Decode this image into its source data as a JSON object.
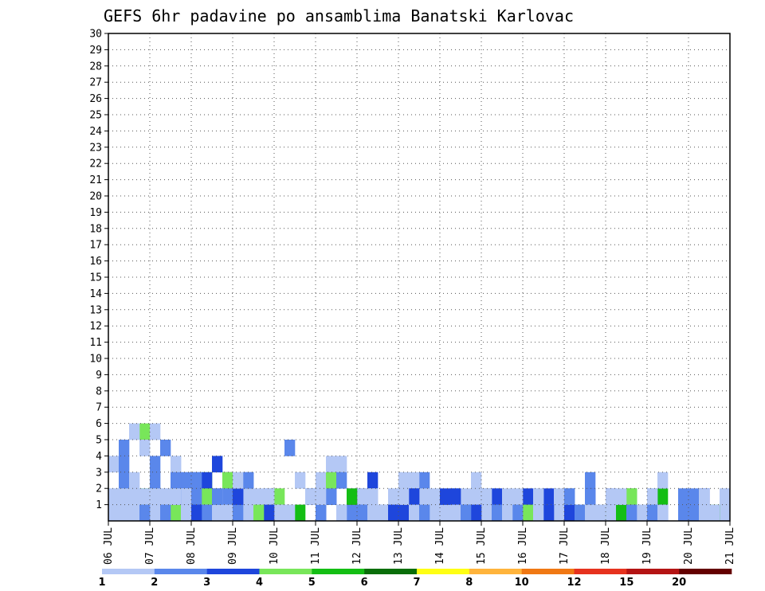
{
  "chart_data": {
    "type": "heatmap",
    "title": "GEFS 6hr padavine po ansamblima Banatski Karlovac",
    "xlabel": "",
    "ylabel": "",
    "x_tick_labels": [
      "06 JUL",
      "07 JUL",
      "08 JUL",
      "09 JUL",
      "10 JUL",
      "11 JUL",
      "12 JUL",
      "13 JUL",
      "14 JUL",
      "15 JUL",
      "16 JUL",
      "17 JUL",
      "18 JUL",
      "19 JUL",
      "20 JUL",
      "21 JUL"
    ],
    "y_tick_labels": [
      "1",
      "2",
      "3",
      "4",
      "5",
      "6",
      "7",
      "8",
      "9",
      "10",
      "11",
      "12",
      "13",
      "14",
      "15",
      "16",
      "17",
      "18",
      "19",
      "20",
      "21",
      "22",
      "23",
      "24",
      "25",
      "26",
      "27",
      "28",
      "29",
      "30"
    ],
    "xlim": [
      0,
      60
    ],
    "ylim": [
      0,
      30
    ],
    "grid": true,
    "legend": {
      "placement": "bottom",
      "labels": [
        "1",
        "2",
        "3",
        "4",
        "5",
        "6",
        "7",
        "8",
        "10",
        "12",
        "15",
        "20"
      ],
      "colors": [
        "#b4c8f5",
        "#5a87eb",
        "#1e46dc",
        "#78e65a",
        "#14be14",
        "#0a6e0a",
        "#ffff14",
        "#ffb43c",
        "#f07814",
        "#e6321e",
        "#b41414",
        "#640000"
      ]
    },
    "color_scale": [
      "#b4c8f5",
      "#5a87eb",
      "#1e46dc",
      "#78e65a",
      "#14be14",
      "#0a6e0a",
      "#ffff14",
      "#ffb43c",
      "#f07814",
      "#e6321e",
      "#b41414",
      "#640000"
    ],
    "cells_format": "[time_step_6h, ensemble_member, color_index]",
    "cells": [
      [
        0,
        1,
        0
      ],
      [
        1,
        0,
        1
      ],
      [
        5,
        1,
        0
      ],
      [
        9,
        0,
        2
      ],
      [
        14,
        0,
        4
      ],
      [
        15,
        1,
        2
      ],
      [
        25,
        1,
        0
      ],
      [
        35,
        0,
        0
      ],
      [
        40,
        1,
        2
      ],
      [
        48,
        0,
        1
      ],
      [
        51,
        0,
        0
      ],
      [
        56,
        0,
        4
      ],
      [
        57,
        1,
        1
      ],
      [
        59,
        1,
        0
      ],
      [
        1,
        2,
        0
      ],
      [
        3,
        5,
        3
      ],
      [
        4,
        5,
        0
      ],
      [
        6,
        1,
        1
      ],
      [
        7,
        0,
        6
      ],
      [
        8,
        1,
        2
      ],
      [
        11,
        1,
        0
      ],
      [
        19,
        1,
        2
      ],
      [
        29,
        0,
        0
      ],
      [
        32,
        0,
        1
      ],
      [
        35,
        1,
        0
      ],
      [
        42,
        1,
        2
      ],
      [
        56,
        0,
        0
      ],
      [
        1,
        2,
        1
      ],
      [
        4,
        2,
        0
      ],
      [
        6,
        0,
        1
      ],
      [
        9,
        1,
        4
      ],
      [
        11,
        2,
        5
      ],
      [
        14,
        0,
        0
      ],
      [
        18,
        2,
        0
      ],
      [
        24,
        1,
        2
      ],
      [
        29,
        1,
        0
      ],
      [
        40,
        0,
        1
      ],
      [
        48,
        0,
        0
      ],
      [
        55,
        0,
        0
      ],
      [
        59,
        0,
        2
      ],
      [
        1,
        4,
        1
      ],
      [
        3,
        4,
        0
      ],
      [
        4,
        3,
        1
      ],
      [
        6,
        0,
        2
      ],
      [
        7,
        0,
        3
      ],
      [
        8,
        0,
        0
      ],
      [
        17,
        0,
        0
      ],
      [
        21,
        3,
        0
      ],
      [
        30,
        2,
        1
      ],
      [
        46,
        2,
        1
      ],
      [
        52,
        0,
        0
      ],
      [
        57,
        0,
        1
      ],
      [
        2,
        5,
        0
      ],
      [
        7,
        2,
        0
      ],
      [
        13,
        2,
        1
      ],
      [
        25,
        2,
        2
      ],
      [
        28,
        1,
        2
      ],
      [
        35,
        2,
        0
      ],
      [
        39,
        0,
        2
      ],
      [
        2,
        2,
        0
      ],
      [
        9,
        2,
        3
      ],
      [
        11,
        0,
        1
      ],
      [
        13,
        0,
        2
      ],
      [
        20,
        0,
        0
      ],
      [
        22,
        0,
        1
      ],
      [
        29,
        2,
        0
      ],
      [
        46,
        0,
        1
      ],
      [
        53,
        1,
        4
      ],
      [
        55,
        1,
        0
      ],
      [
        1,
        1,
        1
      ],
      [
        3,
        0,
        0
      ],
      [
        6,
        3,
        0
      ],
      [
        7,
        1,
        1
      ],
      [
        8,
        2,
        1
      ],
      [
        10,
        3,
        2
      ],
      [
        11,
        2,
        3
      ],
      [
        26,
        0,
        0
      ],
      [
        32,
        0,
        3
      ],
      [
        34,
        1,
        0
      ],
      [
        37,
        0,
        2
      ],
      [
        51,
        0,
        0
      ],
      [
        1,
        0,
        1
      ],
      [
        2,
        0,
        1
      ],
      [
        4,
        1,
        1
      ],
      [
        7,
        0,
        3
      ],
      [
        10,
        0,
        2
      ],
      [
        15,
        0,
        0
      ],
      [
        18,
        0,
        4
      ],
      [
        30,
        1,
        0
      ],
      [
        42,
        0,
        1
      ],
      [
        0,
        3,
        0
      ],
      [
        1,
        3,
        1
      ],
      [
        5,
        4,
        1
      ],
      [
        12,
        2,
        0
      ],
      [
        17,
        4,
        1
      ],
      [
        20,
        2,
        0
      ],
      [
        22,
        3,
        0
      ],
      [
        29,
        1,
        1
      ],
      [
        38,
        0,
        0
      ],
      [
        41,
        0,
        2
      ],
      [
        43,
        0,
        3
      ],
      [
        55,
        0,
        0
      ],
      [
        57,
        1,
        2
      ],
      [
        2,
        1,
        0
      ],
      [
        4,
        2,
        1
      ],
      [
        6,
        3,
        0
      ],
      [
        7,
        2,
        1
      ],
      [
        9,
        2,
        2
      ],
      [
        16,
        0,
        0
      ],
      [
        21,
        1,
        2
      ],
      [
        24,
        1,
        0
      ],
      [
        33,
        1,
        1
      ],
      [
        39,
        0,
        0
      ],
      [
        45,
        0,
        0
      ],
      [
        50,
        1,
        4
      ],
      [
        55,
        0,
        1
      ],
      [
        57,
        1,
        2
      ],
      [
        3,
        0,
        1
      ],
      [
        6,
        0,
        1
      ],
      [
        9,
        0,
        0
      ],
      [
        13,
        0,
        2
      ],
      [
        28,
        0,
        2
      ],
      [
        31,
        0,
        0
      ],
      [
        36,
        0,
        5
      ],
      [
        39,
        0,
        2
      ],
      [
        43,
        1,
        0
      ],
      [
        51,
        0,
        0
      ],
      [
        1,
        0,
        0
      ],
      [
        3,
        1,
        4
      ],
      [
        8,
        0,
        0
      ],
      [
        16,
        1,
        3
      ],
      [
        29,
        0,
        2
      ],
      [
        33,
        0,
        3
      ],
      [
        43,
        0,
        0
      ],
      [
        49,
        0,
        4
      ],
      [
        53,
        0,
        0
      ],
      [
        0,
        0,
        0
      ],
      [
        7,
        1,
        0
      ],
      [
        11,
        0,
        0
      ],
      [
        13,
        0,
        4
      ],
      [
        16,
        0,
        0
      ],
      [
        21,
        2,
        3
      ],
      [
        23,
        1,
        0
      ],
      [
        34,
        0,
        2
      ],
      [
        37,
        1,
        0
      ],
      [
        44,
        0,
        0
      ],
      [
        59,
        0,
        0
      ],
      [
        4,
        1,
        0
      ],
      [
        7,
        0,
        4
      ],
      [
        8,
        2,
        1
      ],
      [
        10,
        1,
        1
      ],
      [
        15,
        1,
        0
      ],
      [
        23,
        0,
        0
      ],
      [
        26,
        0,
        1
      ],
      [
        36,
        1,
        0
      ],
      [
        46,
        1,
        2
      ],
      [
        52,
        1,
        1
      ],
      [
        55,
        0,
        0
      ],
      [
        58,
        0,
        1
      ],
      [
        5,
        1,
        0
      ],
      [
        13,
        1,
        0
      ],
      [
        24,
        0,
        1
      ],
      [
        33,
        0,
        0
      ],
      [
        40,
        0,
        2
      ],
      [
        44,
        0,
        2
      ],
      [
        53,
        2,
        0
      ],
      [
        57,
        0,
        2
      ],
      [
        1,
        0,
        1
      ],
      [
        6,
        0,
        0
      ],
      [
        13,
        0,
        0
      ],
      [
        24,
        0,
        1
      ],
      [
        29,
        1,
        2
      ],
      [
        38,
        0,
        4
      ],
      [
        44,
        1,
        0
      ],
      [
        46,
        0,
        1
      ],
      [
        56,
        1,
        1
      ],
      [
        59,
        1,
        0
      ],
      [
        2,
        0,
        0
      ],
      [
        8,
        0,
        1
      ],
      [
        10,
        1,
        2
      ],
      [
        24,
        0,
        1
      ],
      [
        36,
        0,
        0
      ],
      [
        42,
        0,
        2
      ],
      [
        50,
        1,
        3
      ],
      [
        55,
        0,
        1
      ],
      [
        58,
        0,
        3
      ],
      [
        1,
        0,
        0
      ],
      [
        7,
        0,
        2
      ],
      [
        9,
        1,
        3
      ],
      [
        11,
        1,
        1
      ],
      [
        13,
        1,
        0
      ],
      [
        25,
        1,
        0
      ],
      [
        33,
        1,
        2
      ],
      [
        39,
        1,
        0
      ],
      [
        52,
        1,
        0
      ],
      [
        57,
        0,
        2
      ],
      [
        1,
        0,
        0
      ],
      [
        6,
        0,
        3
      ],
      [
        7,
        1,
        0
      ],
      [
        11,
        0,
        0
      ],
      [
        20,
        0,
        2
      ],
      [
        23,
        0,
        1
      ],
      [
        27,
        1,
        0
      ],
      [
        37,
        1,
        2
      ],
      [
        47,
        0,
        3
      ],
      [
        56,
        0,
        0
      ],
      [
        0,
        0,
        0
      ],
      [
        7,
        0,
        1
      ],
      [
        8,
        0,
        0
      ],
      [
        12,
        1,
        2
      ],
      [
        22,
        2,
        1
      ],
      [
        31,
        1,
        0
      ],
      [
        40,
        0,
        3
      ],
      [
        48,
        1,
        2
      ],
      [
        53,
        0,
        1
      ],
      [
        58,
        0,
        4
      ],
      [
        1,
        0,
        1
      ],
      [
        4,
        0,
        0
      ],
      [
        6,
        2,
        1
      ],
      [
        12,
        0,
        1
      ],
      [
        16,
        0,
        0
      ],
      [
        21,
        1,
        1
      ],
      [
        32,
        0,
        0
      ],
      [
        36,
        0,
        0
      ],
      [
        41,
        1,
        0
      ],
      [
        46,
        1,
        1
      ],
      [
        52,
        0,
        0
      ],
      [
        55,
        1,
        1
      ],
      [
        2,
        0,
        0
      ],
      [
        8,
        1,
        1
      ],
      [
        10,
        1,
        0
      ],
      [
        13,
        2,
        1
      ],
      [
        26,
        0,
        0
      ],
      [
        31,
        0,
        0
      ],
      [
        39,
        0,
        1
      ],
      [
        47,
        0,
        0
      ],
      [
        57,
        0,
        2
      ],
      [
        1,
        1,
        0
      ],
      [
        5,
        0,
        1
      ],
      [
        8,
        0,
        0
      ],
      [
        14,
        1,
        0
      ],
      [
        23,
        0,
        1
      ],
      [
        33,
        0,
        0
      ],
      [
        45,
        0,
        1
      ],
      [
        53,
        0,
        0
      ],
      [
        1,
        0,
        0
      ],
      [
        7,
        0,
        0
      ],
      [
        12,
        1,
        2
      ],
      [
        23,
        1,
        4
      ],
      [
        27,
        0,
        2
      ],
      [
        36,
        1,
        1
      ],
      [
        41,
        0,
        0
      ],
      [
        49,
        1,
        0
      ],
      [
        53,
        0,
        1
      ],
      [
        3,
        1,
        0
      ],
      [
        9,
        0,
        0
      ],
      [
        15,
        1,
        0
      ],
      [
        20,
        0,
        1
      ],
      [
        28,
        1,
        0
      ],
      [
        38,
        1,
        0
      ],
      [
        44,
        1,
        1
      ],
      [
        52,
        0,
        1
      ],
      [
        1,
        0,
        0
      ],
      [
        6,
        1,
        1
      ],
      [
        8,
        0,
        2
      ],
      [
        17,
        0,
        0
      ],
      [
        25,
        1,
        0
      ],
      [
        32,
        1,
        2
      ],
      [
        37,
        0,
        1
      ],
      [
        43,
        1,
        0
      ],
      [
        56,
        0,
        1
      ],
      [
        58,
        0,
        0
      ],
      [
        0,
        1,
        0
      ],
      [
        9,
        0,
        1
      ],
      [
        15,
        0,
        0
      ],
      [
        19,
        1,
        1
      ],
      [
        28,
        2,
        0
      ],
      [
        36,
        1,
        0
      ],
      [
        46,
        0,
        0
      ],
      [
        50,
        0,
        1
      ],
      [
        3,
        0,
        1
      ],
      [
        10,
        0,
        0
      ],
      [
        15,
        0,
        2
      ],
      [
        22,
        0,
        0
      ],
      [
        29,
        0,
        0
      ],
      [
        35,
        0,
        2
      ],
      [
        44,
        1,
        1
      ],
      [
        53,
        0,
        0
      ],
      [
        1,
        0,
        0
      ],
      [
        8,
        0,
        2
      ],
      [
        12,
        2,
        0
      ],
      [
        19,
        1,
        0
      ],
      [
        25,
        0,
        0
      ],
      [
        34,
        0,
        1
      ],
      [
        41,
        1,
        0
      ],
      [
        48,
        1,
        0
      ],
      [
        57,
        0,
        0
      ],
      [
        1,
        0,
        0
      ],
      [
        6,
        1,
        0
      ],
      [
        10,
        1,
        1
      ],
      [
        14,
        0,
        3
      ],
      [
        20,
        1,
        0
      ],
      [
        30,
        0,
        1
      ],
      [
        38,
        0,
        0
      ],
      [
        47,
        0,
        0
      ],
      [
        57,
        1,
        0
      ]
    ]
  }
}
